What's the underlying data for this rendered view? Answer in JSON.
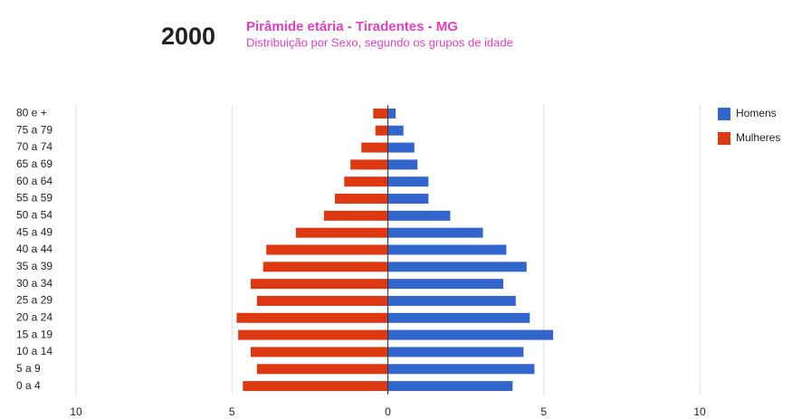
{
  "chart_data": {
    "type": "pyramid",
    "year": "2000",
    "title": "Pirâmide etária - Tiradentes - MG",
    "subtitle": "Distribuição por Sexo, segundo os grupos de idade",
    "categories": [
      "80 e +",
      "75 a 79",
      "70 a 74",
      "65 a 69",
      "60 a 64",
      "55 a 59",
      "50 a 54",
      "45 a 49",
      "40 a 44",
      "35 a 39",
      "30 a 34",
      "25 a 29",
      "20 a 24",
      "15 a 19",
      "10 a 14",
      "5 a 9",
      "0 a 4"
    ],
    "series": [
      {
        "name": "Homens",
        "color": "#3366cc",
        "values": [
          0.25,
          0.5,
          0.85,
          0.95,
          1.3,
          1.3,
          2.0,
          3.05,
          3.8,
          4.45,
          3.7,
          4.1,
          4.55,
          5.3,
          4.35,
          4.7,
          4.0
        ]
      },
      {
        "name": "Mulheres",
        "color": "#dc3912",
        "values": [
          -0.47,
          -0.4,
          -0.85,
          -1.2,
          -1.4,
          -1.7,
          -2.05,
          -2.95,
          -3.9,
          -4.0,
          -4.4,
          -4.2,
          -4.85,
          -4.8,
          -4.4,
          -4.2,
          -4.65
        ]
      }
    ],
    "xlim": [
      -10,
      10
    ],
    "xticks": [
      {
        "value": -10,
        "label": "10"
      },
      {
        "value": -5,
        "label": "5"
      },
      0,
      5,
      10
    ],
    "grid": true,
    "legend": "top-right"
  }
}
